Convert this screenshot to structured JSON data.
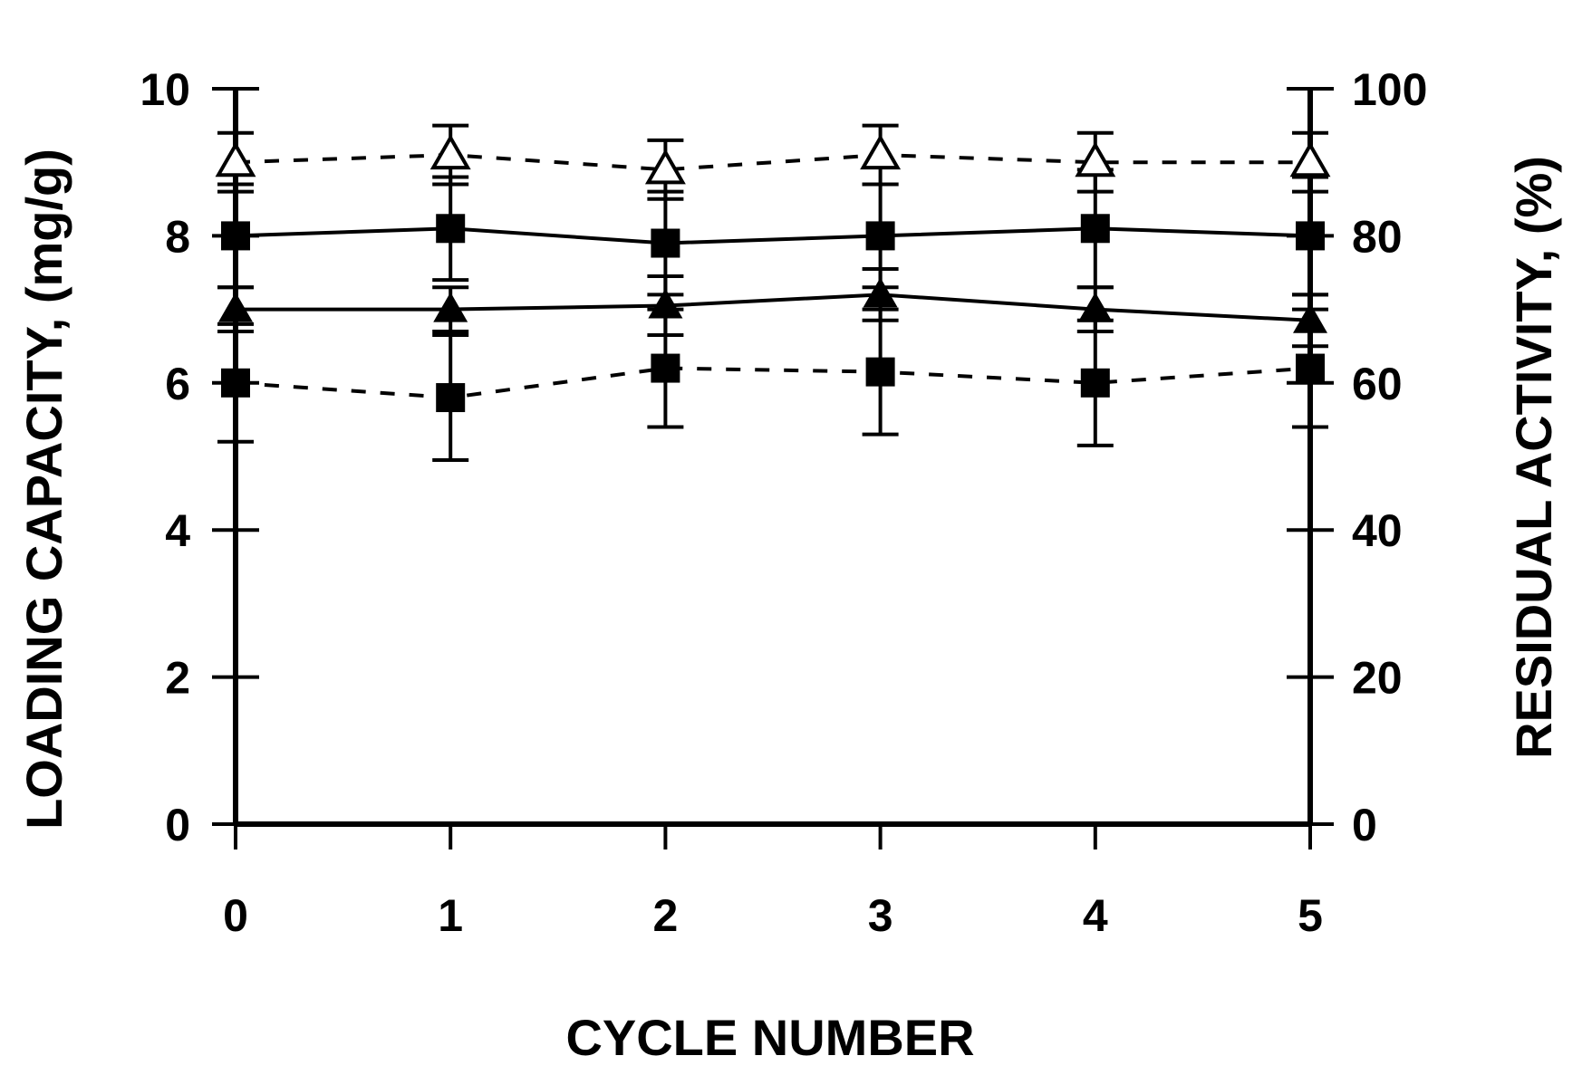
{
  "chart_data": {
    "type": "line",
    "title": "",
    "xlabel": "CYCLE NUMBER",
    "ylabel": "LOADING CAPACITY, (mg/g)",
    "y2label": "RESIDUAL ACTIVITY, (%)",
    "x": [
      0,
      1,
      2,
      3,
      4,
      5
    ],
    "xticks": [
      "0",
      "1",
      "2",
      "3",
      "4",
      "5"
    ],
    "xlim": [
      0,
      5
    ],
    "ylim": [
      0,
      10
    ],
    "yticks": [
      "0",
      "2",
      "4",
      "6",
      "8",
      "10"
    ],
    "y2lim": [
      0,
      100
    ],
    "y2ticks": [
      "0",
      "20",
      "40",
      "60",
      "80",
      "100"
    ],
    "grid": false,
    "legend": "none",
    "series": [
      {
        "axis": "left",
        "marker": "square-filled",
        "line": "solid",
        "values": [
          8.0,
          8.1,
          7.9,
          8.0,
          8.1,
          8.0
        ],
        "err": [
          0.7,
          0.7,
          0.7,
          0.7,
          0.8,
          0.8
        ]
      },
      {
        "axis": "left",
        "marker": "triangle-filled",
        "line": "solid",
        "values": [
          7.0,
          7.0,
          7.05,
          7.2,
          7.0,
          6.85
        ],
        "err": [
          0.3,
          0.3,
          0.4,
          0.35,
          0.3,
          0.35
        ]
      },
      {
        "axis": "right",
        "marker": "triangle-open",
        "line": "dotted",
        "values": [
          90,
          91,
          89,
          91,
          90,
          90
        ],
        "err": [
          4,
          4,
          4,
          4,
          4,
          4
        ]
      },
      {
        "axis": "right",
        "marker": "square-filled",
        "line": "dotted",
        "values": [
          60,
          58,
          62,
          61.5,
          60,
          62
        ],
        "err": [
          8,
          8.5,
          8,
          8.5,
          8.5,
          8
        ]
      }
    ]
  }
}
